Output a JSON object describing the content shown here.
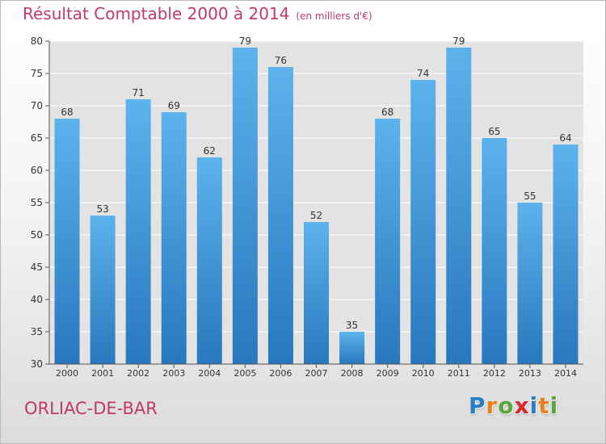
{
  "header": {
    "title": "Résultat Comptable 2000 à 2014",
    "unit": "(en milliers d'€)"
  },
  "footer": {
    "city": "ORLIAC-DE-BAR",
    "logo_letters": [
      {
        "char": "P",
        "color": "#2a7fc4"
      },
      {
        "char": "r",
        "color": "#e8801e"
      },
      {
        "char": "o",
        "color": "#5aa83c"
      },
      {
        "char": "x",
        "color": "#d8282e"
      },
      {
        "char": "i",
        "color": "#2a7fc4"
      },
      {
        "char": "t",
        "color": "#e8801e"
      },
      {
        "char": "i",
        "color": "#5aa83c"
      }
    ]
  },
  "colors": {
    "bar_light": "#5cb3ec",
    "bar_dark": "#2878bd",
    "title": "#c0396a",
    "grid": "#ffffff",
    "plot_bg": "#e3e3e3"
  },
  "chart_data": {
    "type": "bar",
    "title": "Résultat Comptable 2000 à 2014",
    "subtitle": "(en milliers d'€)",
    "categories": [
      "2000",
      "2001",
      "2002",
      "2003",
      "2004",
      "2005",
      "2006",
      "2007",
      "2008",
      "2009",
      "2010",
      "2011",
      "2012",
      "2013",
      "2014"
    ],
    "values": [
      68,
      53,
      71,
      69,
      62,
      79,
      76,
      52,
      35,
      68,
      74,
      79,
      65,
      55,
      64
    ],
    "ylim": [
      30,
      80
    ],
    "yticks": [
      30,
      35,
      40,
      45,
      50,
      55,
      60,
      65,
      70,
      75,
      80
    ],
    "grid": true,
    "legend": "none"
  }
}
